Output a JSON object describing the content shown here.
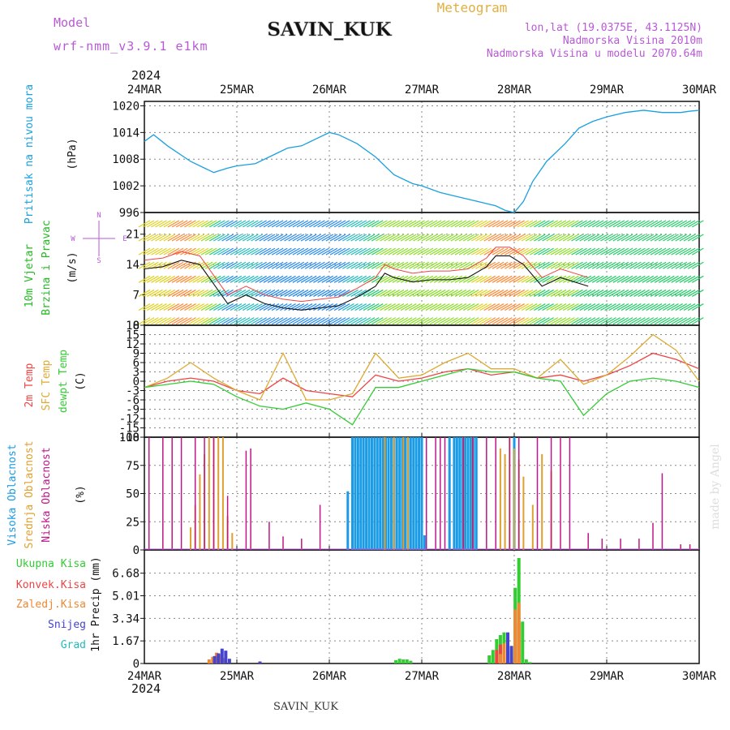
{
  "header": {
    "model_label": "Model",
    "model_value": "wrf-nmm_v3.9.1 e1km",
    "station": "SAVIN_KUK",
    "meteogram_label": "Meteogram",
    "lonlat": "lon,lat (19.0375E, 43.1125N)",
    "altitude": "Nadmorska Visina 2010m",
    "model_altitude": "Nadmorska Visina u modelu 2070.64m",
    "year": "2024",
    "credit": "made by Angel",
    "footer_station": "SAVIN_KUK"
  },
  "colors": {
    "pressure": "#1aa0e0",
    "wind_label": "#22bb22",
    "temp2m": "#ee4444",
    "sfc": "#ddaa33",
    "dewpt": "#33cc33",
    "cloud_high": "#1a9be6",
    "cloud_mid": "#e0a030",
    "cloud_low": "#c0168a",
    "precip_total": "#33cc33",
    "precip_conv": "#ee4444",
    "precip_frozen": "#ee8833",
    "snow": "#4444cc",
    "hail": "#22bbbb",
    "header_purple": "#b85ad6",
    "header_orange": "#e0b040"
  },
  "chart_data": [
    {
      "type": "line",
      "panel": "pressure",
      "ylabel": "Pritisak na nivou mora",
      "unit": "(hPa)",
      "xlim": [
        0,
        6
      ],
      "x_tick_labels": [
        "24MAR",
        "25MAR",
        "26MAR",
        "27MAR",
        "28MAR",
        "29MAR",
        "30MAR"
      ],
      "ylim": [
        996,
        1021
      ],
      "y_ticks": [
        996,
        1002,
        1008,
        1014,
        1020
      ],
      "x": [
        0,
        0.1,
        0.25,
        0.5,
        0.7,
        0.75,
        0.9,
        1.0,
        1.2,
        1.4,
        1.55,
        1.7,
        1.85,
        2.0,
        2.1,
        2.3,
        2.5,
        2.7,
        2.9,
        3.0,
        3.2,
        3.4,
        3.6,
        3.8,
        3.9,
        4.0,
        4.1,
        4.2,
        4.35,
        4.55,
        4.7,
        4.85,
        5.0,
        5.2,
        5.4,
        5.6,
        5.8,
        5.9,
        6.0
      ],
      "y": [
        1012,
        1013.5,
        1011,
        1007.5,
        1005.5,
        1005,
        1006,
        1006.5,
        1007,
        1009,
        1010.5,
        1011,
        1012.5,
        1014,
        1013.5,
        1011.5,
        1008.5,
        1004.5,
        1002.5,
        1002,
        1000.5,
        999.5,
        998.5,
        997.5,
        996.5,
        996,
        998.5,
        1003,
        1007.5,
        1011.5,
        1015,
        1016.5,
        1017.5,
        1018.5,
        1019,
        1018.5,
        1018.5,
        1018.8,
        1019
      ]
    },
    {
      "type": "line",
      "panel": "wind",
      "ylabel": "10m Vjetar Brzina i Pravac",
      "unit": "(m/s)",
      "xlim": [
        0,
        6
      ],
      "ylim": [
        0,
        26
      ],
      "y_ticks": [
        0,
        7,
        14,
        21
      ],
      "direction_key": [
        "N",
        "W",
        "E",
        "S"
      ],
      "series": [
        {
          "name": "",
          "x": [
            0,
            0.2,
            0.4,
            0.6,
            0.8,
            0.9,
            1.1,
            1.3,
            1.5,
            1.7,
            1.9,
            2.1,
            2.3,
            2.5,
            2.6,
            2.7,
            2.9,
            3.1,
            3.3,
            3.5,
            3.7,
            3.8,
            3.95,
            4.1,
            4.3,
            4.5,
            4.8
          ],
          "y": [
            13,
            13.5,
            15,
            14,
            8,
            5,
            7,
            5,
            4,
            3.5,
            4,
            4.5,
            6.5,
            9,
            12,
            11,
            10,
            10.5,
            10.5,
            11,
            13.5,
            16,
            16,
            14,
            9,
            11,
            9
          ]
        }
      ]
    },
    {
      "type": "line",
      "panel": "temperature",
      "ylabel": "2m Temp / SFC Temp / dewpt Temp",
      "unit": "(C)",
      "xlim": [
        0,
        6
      ],
      "ylim": [
        -18,
        18
      ],
      "y_ticks": [
        -18,
        -15,
        -12,
        -9,
        -6,
        -3,
        0,
        3,
        6,
        9,
        12,
        15,
        18
      ],
      "x": [
        0,
        0.25,
        0.5,
        0.75,
        1.0,
        1.25,
        1.5,
        1.75,
        2.0,
        2.25,
        2.5,
        2.75,
        3.0,
        3.25,
        3.5,
        3.75,
        4.0,
        4.25,
        4.5,
        4.75,
        5.0,
        5.25,
        5.5,
        5.75,
        6.0
      ],
      "series": [
        {
          "name": "2m Temp",
          "values": [
            -2,
            0,
            1,
            0,
            -3,
            -4,
            1,
            -3,
            -4,
            -5,
            2,
            0,
            1,
            3,
            4,
            2,
            3,
            1,
            2,
            0,
            2,
            5,
            9,
            7,
            4
          ]
        },
        {
          "name": "SFC Temp",
          "values": [
            -2,
            1,
            6,
            1,
            -3,
            -6,
            9,
            -6,
            -6,
            -4,
            9,
            1,
            2,
            6,
            9,
            4,
            4,
            1,
            7,
            -1,
            2,
            8,
            15,
            10,
            0
          ]
        },
        {
          "name": "dewpt Temp",
          "values": [
            -2,
            -1,
            0,
            -1,
            -5,
            -8,
            -9,
            -7,
            -9,
            -14,
            -2,
            -2,
            0,
            2,
            4,
            3,
            3,
            1,
            0,
            -11,
            -4,
            0,
            1,
            0,
            -2
          ]
        }
      ]
    },
    {
      "type": "bar",
      "panel": "clouds",
      "unit": "(%)",
      "xlim": [
        0,
        6
      ],
      "ylim": [
        0,
        100
      ],
      "y_ticks": [
        0,
        25,
        50,
        75,
        100
      ],
      "series": [
        {
          "name": "Visoka Oblacnost",
          "x": [
            2.2,
            2.25,
            2.28,
            2.31,
            2.34,
            2.37,
            2.4,
            2.43,
            2.46,
            2.49,
            2.52,
            2.55,
            2.58,
            2.61,
            2.64,
            2.67,
            2.7,
            2.73,
            2.76,
            2.79,
            2.82,
            2.85,
            2.88,
            2.91,
            2.94,
            2.97,
            3.0,
            3.03,
            3.3,
            3.35,
            3.38,
            3.41,
            3.44,
            3.47,
            3.5,
            3.53,
            3.56,
            3.59,
            4.0
          ],
          "values": [
            52,
            100,
            100,
            100,
            100,
            100,
            100,
            100,
            100,
            100,
            100,
            100,
            100,
            100,
            100,
            100,
            100,
            100,
            100,
            100,
            100,
            100,
            100,
            100,
            100,
            100,
            100,
            13,
            100,
            100,
            100,
            100,
            100,
            100,
            100,
            100,
            100,
            100,
            100
          ]
        },
        {
          "name": "Srednja Oblacnost",
          "x": [
            0.5,
            0.55,
            0.6,
            0.65,
            0.7,
            0.75,
            0.8,
            0.85,
            0.9,
            0.95,
            2.6,
            2.7,
            2.8,
            2.85,
            3.45,
            3.55,
            3.85,
            3.9,
            3.95,
            4.0,
            4.05,
            4.1,
            4.2,
            4.3,
            4.4
          ],
          "values": [
            20,
            40,
            67,
            85,
            100,
            100,
            100,
            100,
            30,
            15,
            100,
            100,
            100,
            100,
            100,
            100,
            90,
            85,
            100,
            90,
            80,
            65,
            40,
            85,
            70
          ]
        },
        {
          "name": "Niska Oblacnost",
          "x": [
            0.05,
            0.2,
            0.3,
            0.4,
            0.55,
            0.65,
            0.75,
            0.9,
            1.1,
            1.15,
            1.35,
            1.5,
            1.7,
            1.9,
            3.05,
            3.15,
            3.2,
            3.25,
            3.45,
            3.55,
            3.7,
            3.8,
            3.95,
            4.05,
            4.25,
            4.4,
            4.5,
            4.6,
            4.8,
            4.95,
            5.15,
            5.35,
            5.5,
            5.6,
            5.8,
            5.9
          ],
          "values": [
            100,
            100,
            100,
            100,
            100,
            100,
            100,
            48,
            88,
            90,
            25,
            12,
            10,
            40,
            100,
            100,
            100,
            100,
            100,
            100,
            100,
            100,
            100,
            100,
            100,
            100,
            100,
            100,
            15,
            10,
            10,
            10,
            24,
            68,
            5,
            5
          ]
        }
      ]
    },
    {
      "type": "bar",
      "panel": "precipitation",
      "ylabel": "1hr Precip",
      "unit": "(mm)",
      "xlim": [
        0,
        6
      ],
      "ylim": [
        0,
        8.4
      ],
      "y_ticks": [
        0,
        1.67,
        3.34,
        5.01,
        6.68
      ],
      "series": [
        {
          "name": "Ukupna Kisa",
          "x": [
            2.72,
            2.76,
            2.8,
            2.84,
            2.88,
            3.73,
            3.77,
            3.81,
            3.85,
            3.89,
            3.93,
            3.97,
            4.01,
            4.05,
            4.09,
            4.13,
            4.17
          ],
          "values": [
            0.25,
            0.35,
            0.3,
            0.3,
            0.2,
            0.6,
            1.0,
            1.8,
            2.1,
            2.3,
            1.3,
            1.0,
            5.6,
            7.8,
            3.1,
            0.3,
            0.1
          ]
        },
        {
          "name": "Konvek.Kisa",
          "x": [
            3.81,
            3.85,
            3.89,
            3.97,
            4.05
          ],
          "values": [
            1.0,
            1.4,
            1.2,
            0.5,
            3.0
          ]
        },
        {
          "name": "Zaledj.Kisa",
          "x": [
            0.7,
            0.74,
            0.78,
            0.82,
            0.86,
            3.85,
            3.89,
            3.93,
            4.01,
            4.05
          ],
          "values": [
            0.3,
            0.5,
            0.8,
            0.7,
            0.4,
            0.7,
            1.5,
            0.9,
            4.0,
            4.5
          ]
        },
        {
          "name": "Snijeg",
          "x": [
            0.76,
            0.8,
            0.84,
            0.88,
            0.92,
            1.25,
            3.93,
            3.97
          ],
          "values": [
            0.55,
            0.75,
            1.1,
            0.95,
            0.35,
            0.15,
            2.3,
            1.3
          ]
        },
        {
          "name": "Grad",
          "x": [],
          "values": []
        }
      ]
    }
  ]
}
